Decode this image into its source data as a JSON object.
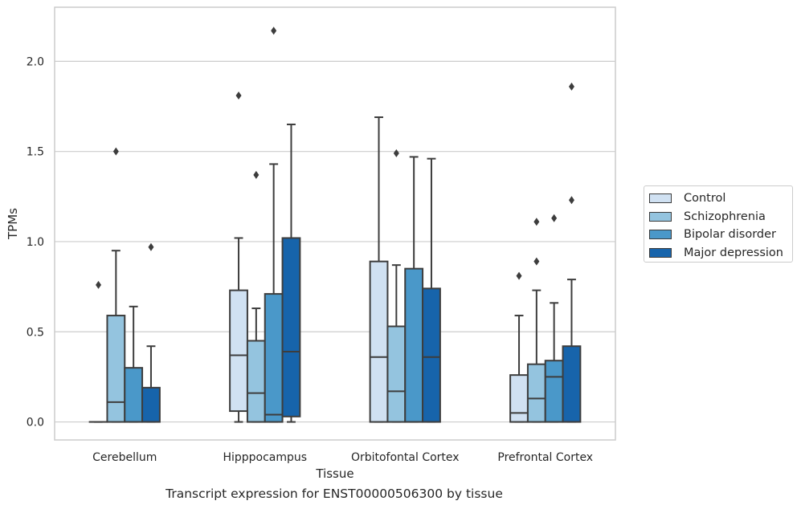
{
  "chart_data": {
    "type": "boxplot",
    "title": "Transcript expression for ENST00000506300 by tissue",
    "xlabel": "Tissue",
    "ylabel": "TPMs",
    "ylim": [
      -0.1,
      2.3
    ],
    "yticks": [
      0.0,
      0.5,
      1.0,
      1.5,
      2.0
    ],
    "ytick_labels": [
      "0.0",
      "0.5",
      "1.0",
      "1.5",
      "2.0"
    ],
    "grid": "horizontal",
    "legend_position": "right",
    "categories": [
      "Cerebellum",
      "Hipppocampus",
      "Orbitofontal Cortex",
      "Prefrontal Cortex"
    ],
    "series": [
      {
        "name": "Control",
        "color": "#d0e1f2",
        "boxes": [
          {
            "whislo": 0.0,
            "q1": 0.0,
            "med": 0.0,
            "q3": 0.0,
            "whishi": 0.0,
            "fliers": [
              0.76
            ]
          },
          {
            "whislo": 0.0,
            "q1": 0.06,
            "med": 0.37,
            "q3": 0.73,
            "whishi": 1.02,
            "fliers": [
              1.81
            ]
          },
          {
            "whislo": 0.0,
            "q1": 0.0,
            "med": 0.36,
            "q3": 0.89,
            "whishi": 1.69,
            "fliers": []
          },
          {
            "whislo": 0.0,
            "q1": 0.0,
            "med": 0.05,
            "q3": 0.26,
            "whishi": 0.59,
            "fliers": [
              0.81
            ]
          }
        ]
      },
      {
        "name": "Schizophrenia",
        "color": "#94c4df",
        "boxes": [
          {
            "whislo": 0.0,
            "q1": 0.0,
            "med": 0.11,
            "q3": 0.59,
            "whishi": 0.95,
            "fliers": [
              1.5
            ]
          },
          {
            "whislo": 0.0,
            "q1": 0.0,
            "med": 0.16,
            "q3": 0.45,
            "whishi": 0.63,
            "fliers": [
              1.37
            ]
          },
          {
            "whislo": 0.0,
            "q1": 0.0,
            "med": 0.17,
            "q3": 0.53,
            "whishi": 0.87,
            "fliers": [
              1.49
            ]
          },
          {
            "whislo": 0.0,
            "q1": 0.0,
            "med": 0.13,
            "q3": 0.32,
            "whishi": 0.73,
            "fliers": [
              0.89,
              1.11
            ]
          }
        ]
      },
      {
        "name": "Bipolar disorder",
        "color": "#4a98c9",
        "boxes": [
          {
            "whislo": 0.0,
            "q1": 0.0,
            "med": 0.0,
            "q3": 0.3,
            "whishi": 0.64,
            "fliers": []
          },
          {
            "whislo": 0.0,
            "q1": 0.0,
            "med": 0.04,
            "q3": 0.71,
            "whishi": 1.43,
            "fliers": [
              2.17
            ]
          },
          {
            "whislo": 0.0,
            "q1": 0.0,
            "med": 0.0,
            "q3": 0.85,
            "whishi": 1.47,
            "fliers": []
          },
          {
            "whislo": 0.0,
            "q1": 0.0,
            "med": 0.25,
            "q3": 0.34,
            "whishi": 0.66,
            "fliers": [
              1.13
            ]
          }
        ]
      },
      {
        "name": "Major depression",
        "color": "#1764ab",
        "boxes": [
          {
            "whislo": 0.0,
            "q1": 0.0,
            "med": 0.0,
            "q3": 0.19,
            "whishi": 0.42,
            "fliers": [
              0.97
            ]
          },
          {
            "whislo": 0.0,
            "q1": 0.03,
            "med": 0.39,
            "q3": 1.02,
            "whishi": 1.65,
            "fliers": []
          },
          {
            "whislo": 0.0,
            "q1": 0.0,
            "med": 0.36,
            "q3": 0.74,
            "whishi": 1.46,
            "fliers": []
          },
          {
            "whislo": 0.0,
            "q1": 0.0,
            "med": 0.0,
            "q3": 0.42,
            "whishi": 0.79,
            "fliers": [
              1.23,
              1.86
            ]
          }
        ]
      }
    ]
  }
}
